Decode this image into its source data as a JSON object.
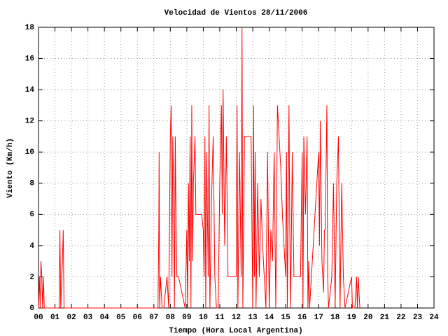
{
  "chart_data": {
    "type": "line",
    "title": "Velocidad de Vientos 28/11/2006",
    "xlabel": "Tiempo (Hora Local Argentina)",
    "ylabel": "Viento (Km/h)",
    "xlim": [
      0,
      24
    ],
    "ylim": [
      0,
      18
    ],
    "xticks": [
      {
        "value": 0,
        "label": "00"
      },
      {
        "value": 1,
        "label": "01"
      },
      {
        "value": 2,
        "label": "02"
      },
      {
        "value": 3,
        "label": "03"
      },
      {
        "value": 4,
        "label": "04"
      },
      {
        "value": 5,
        "label": "05"
      },
      {
        "value": 6,
        "label": "06"
      },
      {
        "value": 7,
        "label": "07"
      },
      {
        "value": 8,
        "label": "08"
      },
      {
        "value": 9,
        "label": "09"
      },
      10,
      11,
      12,
      13,
      14,
      15,
      16,
      17,
      18,
      19,
      20,
      21,
      22,
      23,
      24
    ],
    "yticks": [
      0,
      2,
      4,
      6,
      8,
      10,
      12,
      14,
      16,
      18
    ],
    "grid": true,
    "series": [
      {
        "color": "#ff0000",
        "x": [
          0,
          0.05,
          0.1,
          0.15,
          0.2,
          0.25,
          0.3,
          0.35,
          1.25,
          1.3,
          1.35,
          1.45,
          1.5,
          1.55,
          7.25,
          7.3,
          7.32,
          7.35,
          7.4,
          7.5,
          7.6,
          7.8,
          7.9,
          8.0,
          8.05,
          8.1,
          8.15,
          8.2,
          8.25,
          8.3,
          8.35,
          8.4,
          8.5,
          8.9,
          9.0,
          9.05,
          9.1,
          9.15,
          9.2,
          9.25,
          9.3,
          9.35,
          9.4,
          9.5,
          9.55,
          9.6,
          9.9,
          10.0,
          10.05,
          10.1,
          10.15,
          10.2,
          10.3,
          10.35,
          10.4,
          10.5,
          10.6,
          10.7,
          10.8,
          10.9,
          11.0,
          11.1,
          11.15,
          11.2,
          11.3,
          11.4,
          11.5,
          11.6,
          12.0,
          12.05,
          12.1,
          12.2,
          12.3,
          12.35,
          12.4,
          12.5,
          12.8,
          12.9,
          13.0,
          13.05,
          13.1,
          13.15,
          13.2,
          13.3,
          13.4,
          13.5,
          13.6,
          13.8,
          13.9,
          14.0,
          14.1,
          14.2,
          14.3,
          14.4,
          14.5,
          14.55,
          14.7,
          14.8,
          14.9,
          15.0,
          15.05,
          15.1,
          15.2,
          15.25,
          15.3,
          15.4,
          15.5,
          15.9,
          16.0,
          16.05,
          16.1,
          16.2,
          16.3,
          16.35,
          16.4,
          16.45,
          17.0,
          17.05,
          17.1,
          17.2,
          17.3,
          17.35,
          17.4,
          17.5,
          17.55,
          17.6,
          17.8,
          17.9,
          18.0,
          18.1,
          18.2,
          18.3,
          18.4,
          18.5,
          18.6,
          19.0,
          19.05,
          19.2,
          19.3,
          19.35,
          19.4,
          19.5
        ],
        "values": [
          0,
          2,
          0,
          3,
          2,
          0,
          2,
          0,
          0,
          5,
          0,
          3,
          5,
          0,
          0,
          5,
          10,
          0,
          2,
          0,
          0,
          2,
          0,
          11,
          13,
          2,
          11,
          8,
          0,
          11,
          5,
          2,
          2,
          0,
          5,
          0,
          8,
          3,
          11,
          0,
          13,
          3,
          8,
          11,
          6,
          6,
          6,
          5,
          2,
          11,
          0,
          10,
          2,
          13,
          0,
          7,
          11,
          2,
          0,
          0,
          8,
          13,
          6,
          14,
          4,
          11,
          2,
          2,
          2,
          13,
          0,
          10,
          2,
          18,
          0,
          11,
          11,
          11,
          0,
          13,
          2,
          10,
          0,
          8,
          2,
          7,
          4,
          0,
          10,
          0,
          5,
          3,
          10,
          0,
          13,
          12,
          9,
          6,
          4,
          2,
          10,
          0,
          13,
          5,
          0,
          10,
          2,
          2,
          10,
          0,
          11,
          6,
          11,
          0,
          3,
          0,
          10,
          4,
          12,
          3,
          1,
          5,
          5,
          13,
          2,
          0,
          2,
          8,
          0,
          8,
          11,
          0,
          8,
          2,
          0,
          2,
          0,
          0,
          2,
          0,
          2,
          0
        ]
      }
    ]
  }
}
